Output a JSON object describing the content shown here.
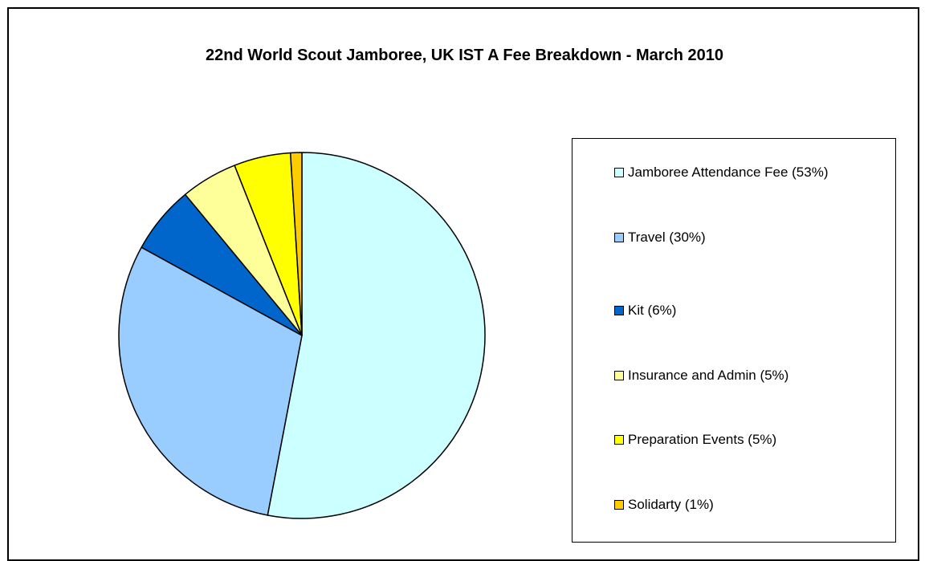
{
  "chart_data": {
    "type": "pie",
    "title": "22nd World Scout Jamboree, UK IST A Fee Breakdown - March 2010",
    "slices": [
      {
        "label": "Jamboree Attendance Fee (53%)",
        "value": 53,
        "color": "#ccffff"
      },
      {
        "label": "Travel (30%)",
        "value": 30,
        "color": "#99ccff"
      },
      {
        "label": "Kit (6%)",
        "value": 6,
        "color": "#0066cc"
      },
      {
        "label": "Insurance and Admin (5%)",
        "value": 5,
        "color": "#ffff99"
      },
      {
        "label": "Preparation Events (5%)",
        "value": 5,
        "color": "#ffff00"
      },
      {
        "label": "Solidarty (1%)",
        "value": 1,
        "color": "#ffcc00"
      }
    ],
    "legend_position": "right"
  }
}
